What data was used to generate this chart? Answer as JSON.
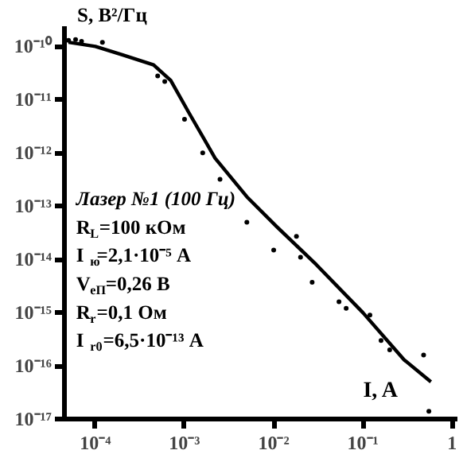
{
  "chart_data": {
    "type": "line",
    "xlabel": "I, A",
    "ylabel": "S, В²/Гц",
    "log": "xy",
    "grid": false,
    "xlim": [
      4.5e-05,
      1.15
    ],
    "ylim": [
      1e-17,
      2.4e-10
    ],
    "xticks": [
      {
        "value": 0.0001,
        "label": "10⁻⁴"
      },
      {
        "value": 0.001,
        "label": "10⁻³"
      },
      {
        "value": 0.01,
        "label": "10⁻²"
      },
      {
        "value": 0.1,
        "label": "10⁻¹"
      },
      1
    ],
    "yticks": [
      {
        "value": 1e-17,
        "label": "10⁻¹⁷"
      },
      {
        "value": 1e-16,
        "label": "10⁻¹⁶"
      },
      {
        "value": 1e-15,
        "label": "10⁻¹⁵"
      },
      {
        "value": 1e-14,
        "label": "10⁻¹⁴"
      },
      {
        "value": 1e-13,
        "label": "10⁻¹³"
      },
      {
        "value": 1e-12,
        "label": "10⁻¹²"
      },
      {
        "value": 1e-11,
        "label": "10⁻¹¹"
      },
      {
        "value": 1e-10,
        "label": "10⁻¹⁰"
      }
    ],
    "annotations": [
      "Лазер №1 (100 Гц)",
      "R$_{L}$=100 кОм",
      "I$_{ю}$=2,1·10⁻⁵ А",
      "V$_{eП}$=0,26 В",
      "R$_{r}$=0,1 Ом",
      "I$_{r0}$=6,5·10⁻¹³ А"
    ],
    "series": [
      {
        "color": "#000000",
        "line_style": "solid",
        "marker": "none",
        "x": [
          5e-05,
          0.0001,
          0.0002,
          0.00045,
          0.0007,
          0.0011,
          0.0022,
          0.005,
          0.011,
          0.03,
          0.1,
          0.29,
          0.58
        ],
        "values": [
          1.2e-10,
          1e-10,
          7e-11,
          4.5e-11,
          2.3e-11,
          6e-12,
          8e-13,
          1.5e-13,
          4e-14,
          8e-15,
          1e-15,
          1.3e-16,
          5e-17
        ]
      },
      {
        "type": "scatter",
        "color": "#000000",
        "marker": "circle",
        "x": [
          5e-05,
          6e-05,
          7e-05,
          0.00012,
          0.0005,
          0.0006,
          0.001,
          0.0016,
          0.0025,
          0.005,
          0.01,
          0.018,
          0.02,
          0.027,
          0.054,
          0.065,
          0.12,
          0.16,
          0.2,
          0.48,
          0.55
        ],
        "values": [
          1.3e-10,
          1.35e-10,
          1.25e-10,
          1.2e-10,
          2.8e-11,
          2.2e-11,
          4.3e-12,
          1e-12,
          3.2e-13,
          5e-14,
          1.5e-14,
          2.7e-14,
          1.1e-14,
          3.7e-15,
          1.6e-15,
          1.2e-15,
          9e-16,
          3e-16,
          2e-16,
          1.6e-16,
          1.4e-17
        ]
      }
    ]
  }
}
